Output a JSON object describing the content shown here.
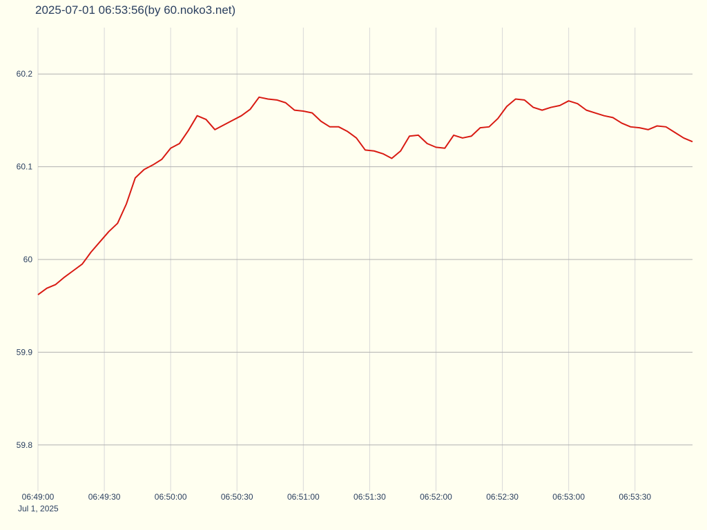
{
  "chart_data": {
    "type": "line",
    "title": "2025-07-01 06:53:56(by 60.noko3.net)",
    "x_date_label": "Jul 1, 2025",
    "x": [
      "06:49:00",
      "06:49:04",
      "06:49:08",
      "06:49:12",
      "06:49:16",
      "06:49:20",
      "06:49:24",
      "06:49:28",
      "06:49:32",
      "06:49:36",
      "06:49:40",
      "06:49:44",
      "06:49:48",
      "06:49:52",
      "06:49:56",
      "06:50:00",
      "06:50:04",
      "06:50:08",
      "06:50:12",
      "06:50:16",
      "06:50:20",
      "06:50:24",
      "06:50:28",
      "06:50:32",
      "06:50:36",
      "06:50:40",
      "06:50:44",
      "06:50:48",
      "06:50:52",
      "06:50:56",
      "06:51:00",
      "06:51:04",
      "06:51:08",
      "06:51:12",
      "06:51:16",
      "06:51:20",
      "06:51:24",
      "06:51:28",
      "06:51:32",
      "06:51:36",
      "06:51:40",
      "06:51:44",
      "06:51:48",
      "06:51:52",
      "06:51:56",
      "06:52:00",
      "06:52:04",
      "06:52:08",
      "06:52:12",
      "06:52:16",
      "06:52:20",
      "06:52:24",
      "06:52:28",
      "06:52:32",
      "06:52:36",
      "06:52:40",
      "06:52:44",
      "06:52:48",
      "06:52:52",
      "06:52:56",
      "06:53:00",
      "06:53:04",
      "06:53:08",
      "06:53:12",
      "06:53:16",
      "06:53:20",
      "06:53:24",
      "06:53:28",
      "06:53:32",
      "06:53:36",
      "06:53:40",
      "06:53:44",
      "06:53:48",
      "06:53:52",
      "06:53:56"
    ],
    "values": [
      59.962,
      59.969,
      59.973,
      59.981,
      59.988,
      59.995,
      60.008,
      60.019,
      60.03,
      60.039,
      60.06,
      60.088,
      60.097,
      60.102,
      60.108,
      60.12,
      60.125,
      60.139,
      60.155,
      60.151,
      60.14,
      60.145,
      60.15,
      60.155,
      60.162,
      60.175,
      60.173,
      60.172,
      60.169,
      60.161,
      60.16,
      60.158,
      60.149,
      60.143,
      60.143,
      60.138,
      60.131,
      60.118,
      60.117,
      60.114,
      60.109,
      60.117,
      60.133,
      60.134,
      60.125,
      60.121,
      60.12,
      60.134,
      60.131,
      60.133,
      60.142,
      60.143,
      60.152,
      60.165,
      60.173,
      60.172,
      60.164,
      60.161,
      60.164,
      60.166,
      60.171,
      60.168,
      60.161,
      60.158,
      60.155,
      60.153,
      60.147,
      60.143,
      60.142,
      60.14,
      60.144,
      60.143,
      60.137,
      60.131,
      60.127
    ],
    "color": "#d81a12",
    "xlim": [
      "06:49:00",
      "06:53:56"
    ],
    "xticks": [
      "06:49:00",
      "06:49:30",
      "06:50:00",
      "06:50:30",
      "06:51:00",
      "06:51:30",
      "06:52:00",
      "06:52:30",
      "06:53:00",
      "06:53:30"
    ],
    "ylim": [
      59.75,
      60.25
    ],
    "yticks": [
      59.8,
      59.9,
      60,
      60.1,
      60.2
    ],
    "grid": true
  }
}
